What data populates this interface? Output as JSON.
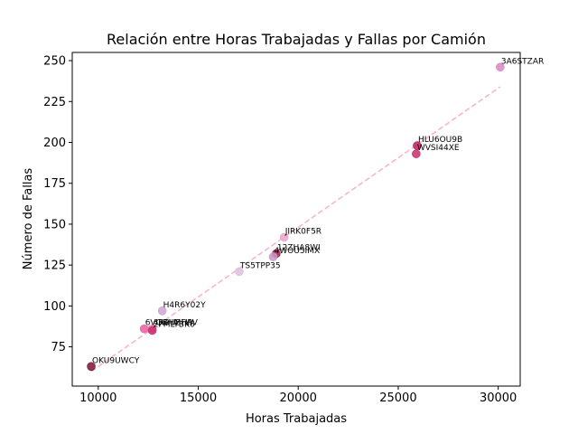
{
  "chart_data": {
    "type": "scatter",
    "title": "Relación entre Horas Trabajadas y Fallas por Camión",
    "xlabel": "Horas Trabajadas",
    "ylabel": "Número de Fallas",
    "xlim": [
      8700,
      31100
    ],
    "ylim": [
      51,
      255
    ],
    "xticks": [
      10000,
      15000,
      20000,
      25000,
      30000
    ],
    "yticks": [
      75,
      100,
      125,
      150,
      175,
      200,
      225,
      250
    ],
    "grid": false,
    "points": [
      {
        "label": "3A6STZAR",
        "x": 30100,
        "y": 246,
        "color": "#d986c4"
      },
      {
        "label": "HLU6OU9B",
        "x": 25950,
        "y": 198,
        "color": "#b8205c"
      },
      {
        "label": "WVSI44XE",
        "x": 25900,
        "y": 193,
        "color": "#c72f6b"
      },
      {
        "label": "JIRK0F5R",
        "x": 19300,
        "y": 142,
        "color": "#e9a6c9"
      },
      {
        "label": "12ZHA8WI",
        "x": 18900,
        "y": 132,
        "color": "#9c1b48"
      },
      {
        "label": "4WOU5IMX",
        "x": 18750,
        "y": 130,
        "color": "#c898c4"
      },
      {
        "label": "TS5TPP35",
        "x": 17050,
        "y": 121,
        "color": "#dcc0df"
      },
      {
        "label": "H4R6Y02Y",
        "x": 13200,
        "y": 97,
        "color": "#cda4cf"
      },
      {
        "label": "6VQBHMFW",
        "x": 12300,
        "y": 86,
        "color": "#e8609f"
      },
      {
        "label": "4RRUBHPV",
        "x": 12700,
        "y": 86,
        "color": "#f07ab0"
      },
      {
        "label": "2PMLYBK6",
        "x": 12700,
        "y": 85,
        "color": "#c72f6b"
      },
      {
        "label": "OKU9UWCY",
        "x": 9650,
        "y": 63,
        "color": "#7a1436"
      }
    ],
    "trendline": {
      "x": [
        9650,
        30100
      ],
      "y": [
        60,
        234
      ],
      "color": "#f7b6cf",
      "style": "dashed"
    }
  }
}
